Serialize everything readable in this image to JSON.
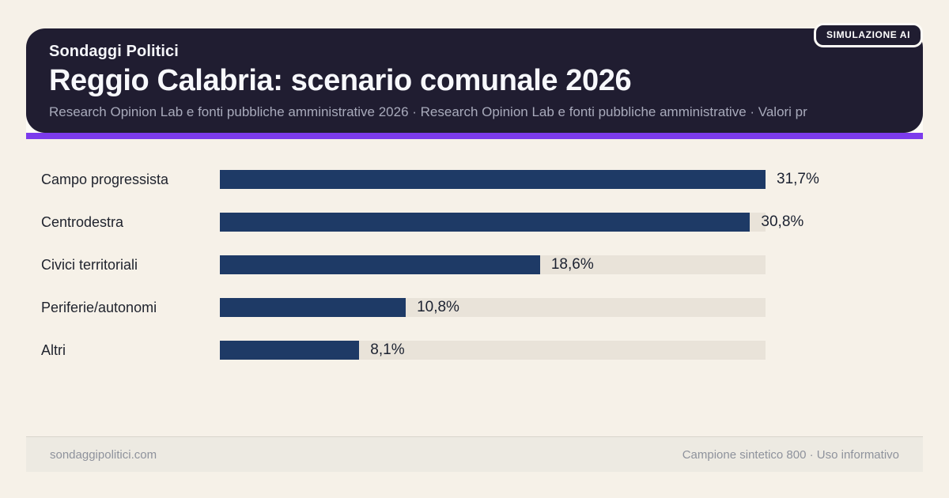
{
  "badge": "SIMULAZIONE AI",
  "header": {
    "kicker": "Sondaggi Politici",
    "title": "Reggio Calabria: scenario comunale 2026",
    "subtitle": "Research Opinion Lab e fonti pubbliche amministrative 2026 · Research Opinion Lab e fonti pubbliche amministrative · Valori pr"
  },
  "chart_data": {
    "type": "bar",
    "orientation": "horizontal",
    "title": "Reggio Calabria: scenario comunale 2026",
    "categories": [
      "Campo progressista",
      "Centrodestra",
      "Civici territoriali",
      "Periferie/autonomi",
      "Altri"
    ],
    "values": [
      31.7,
      30.8,
      18.6,
      10.8,
      8.1
    ],
    "value_labels": [
      "31,7%",
      "30,8%",
      "18,6%",
      "10,8%",
      "8,1%"
    ],
    "unit": "%",
    "xlim": [
      0,
      31.7
    ],
    "grid": false,
    "legend": false,
    "bar_color": "#1e3a66",
    "track_color": "#e9e3d9"
  },
  "footer": {
    "left": "sondaggipolitici.com",
    "right": "Campione sintetico 800 · Uso informativo"
  },
  "colors": {
    "page_bg": "#f6f1e8",
    "header_bg": "#201d31",
    "accent": "#7c3bec",
    "bar_color": "#1e3a66",
    "track_color": "#e9e3d9",
    "footer_bg": "#edeae2",
    "footer_text": "#8e929c"
  }
}
